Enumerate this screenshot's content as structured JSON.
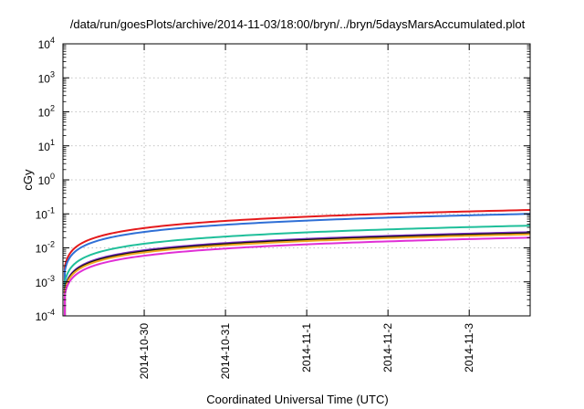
{
  "chart_data": {
    "type": "line",
    "title": "/data/run/goesPlots/archive/2014-11-03/18:00/bryn/../bryn/5daysMarsAccumulated.plot",
    "xlabel": "Coordinated Universal Time (UTC)",
    "ylabel": "cGy",
    "x_scale": "date",
    "y_scale": "log",
    "xlim": [
      "2014-10-29T00:00",
      "2014-11-03T18:00"
    ],
    "ylim": [
      0.0001,
      10000
    ],
    "x_ticks": [
      "2014-10-30",
      "2014-10-31",
      "2014-11-1",
      "2014-11-2",
      "2014-11-3"
    ],
    "y_ticks": [
      {
        "base": "10",
        "exp": "-4",
        "value": 0.0001
      },
      {
        "base": "10",
        "exp": "-3",
        "value": 0.001
      },
      {
        "base": "10",
        "exp": "-2",
        "value": 0.01
      },
      {
        "base": "10",
        "exp": "-1",
        "value": 0.1
      },
      {
        "base": "10",
        "exp": "0",
        "value": 1
      },
      {
        "base": "10",
        "exp": "1",
        "value": 10
      },
      {
        "base": "10",
        "exp": "2",
        "value": 100
      },
      {
        "base": "10",
        "exp": "3",
        "value": 1000
      },
      {
        "base": "10",
        "exp": "4",
        "value": 10000
      }
    ],
    "grid": true,
    "series": [
      {
        "color": "#e41a1c",
        "final_value": 0.13
      },
      {
        "color": "#2f6fd6",
        "final_value": 0.1
      },
      {
        "color": "#1fbf9a",
        "final_value": 0.045
      },
      {
        "color": "#7b2fc4",
        "final_value": 0.029
      },
      {
        "color": "#111111",
        "final_value": 0.027
      },
      {
        "color": "#f0a820",
        "final_value": 0.025
      },
      {
        "color": "#e02fd6",
        "final_value": 0.02
      }
    ]
  }
}
